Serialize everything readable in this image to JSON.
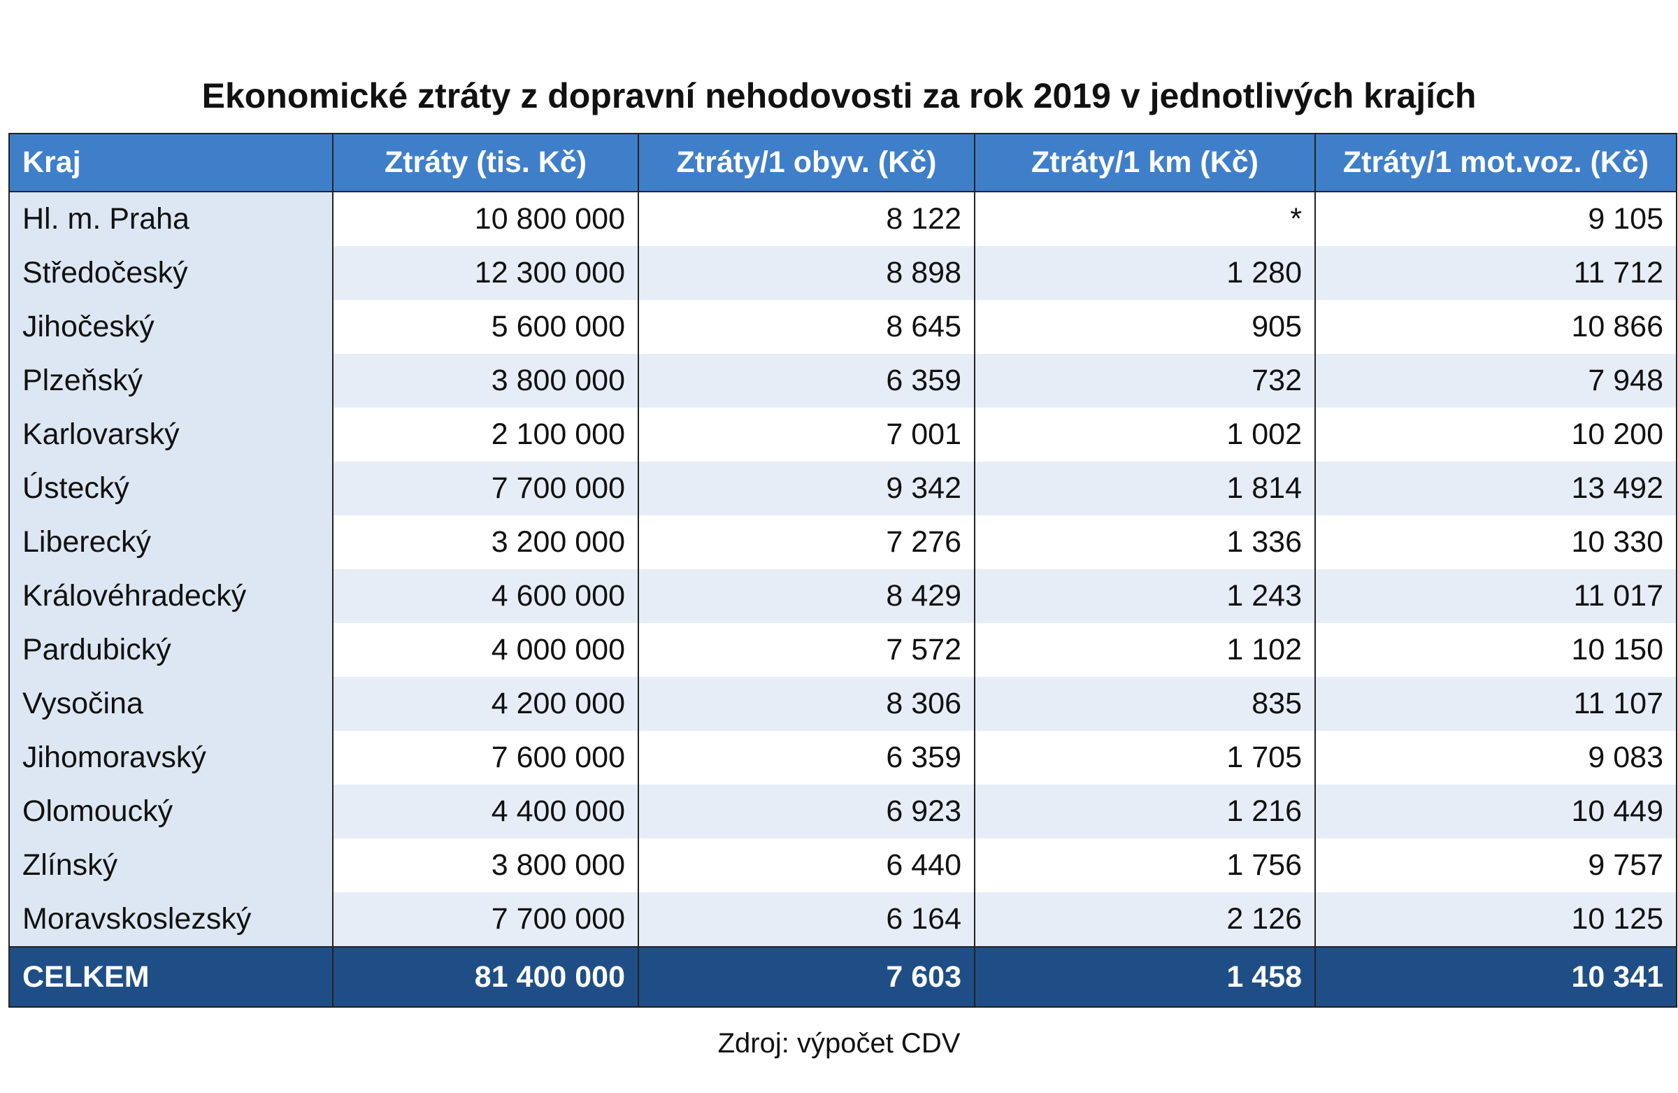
{
  "header": {
    "title": "Ekonomické ztráty z dopravní nehodovosti za rok 2019 v jednotlivých krajích"
  },
  "table": {
    "columns": [
      "Kraj",
      "Ztráty (tis. Kč)",
      "Ztráty/1 obyv. (Kč)",
      "Ztráty/1 km (Kč)",
      "Ztráty/1 mot.voz. (Kč)"
    ],
    "rows": [
      [
        "Hl. m. Praha",
        "10 800 000",
        "8 122",
        "*",
        "9 105"
      ],
      [
        "Středočeský",
        "12 300 000",
        "8 898",
        "1 280",
        "11 712"
      ],
      [
        "Jihočeský",
        "5 600 000",
        "8 645",
        "905",
        "10 866"
      ],
      [
        "Plzeňský",
        "3 800 000",
        "6 359",
        "732",
        "7 948"
      ],
      [
        "Karlovarský",
        "2 100 000",
        "7 001",
        "1 002",
        "10 200"
      ],
      [
        "Ústecký",
        "7 700 000",
        "9 342",
        "1 814",
        "13 492"
      ],
      [
        "Liberecký",
        "3 200 000",
        "7 276",
        "1 336",
        "10 330"
      ],
      [
        "Královéhradecký",
        "4 600 000",
        "8 429",
        "1 243",
        "11 017"
      ],
      [
        "Pardubický",
        "4 000 000",
        "7 572",
        "1 102",
        "10 150"
      ],
      [
        "Vysočina",
        "4 200 000",
        "8 306",
        "835",
        "11 107"
      ],
      [
        "Jihomoravský",
        "7 600 000",
        "6 359",
        "1 705",
        "9 083"
      ],
      [
        "Olomoucký",
        "4 400 000",
        "6 923",
        "1 216",
        "10 449"
      ],
      [
        "Zlínský",
        "3 800 000",
        "6 440",
        "1 756",
        "9 757"
      ],
      [
        "Moravskoslezský",
        "7 700 000",
        "6 164",
        "2 126",
        "10 125"
      ]
    ],
    "total": [
      "CELKEM",
      "81 400 000",
      "7 603",
      "1 458",
      "10 341"
    ]
  },
  "footer": {
    "source": "Zdroj: výpočet CDV"
  }
}
